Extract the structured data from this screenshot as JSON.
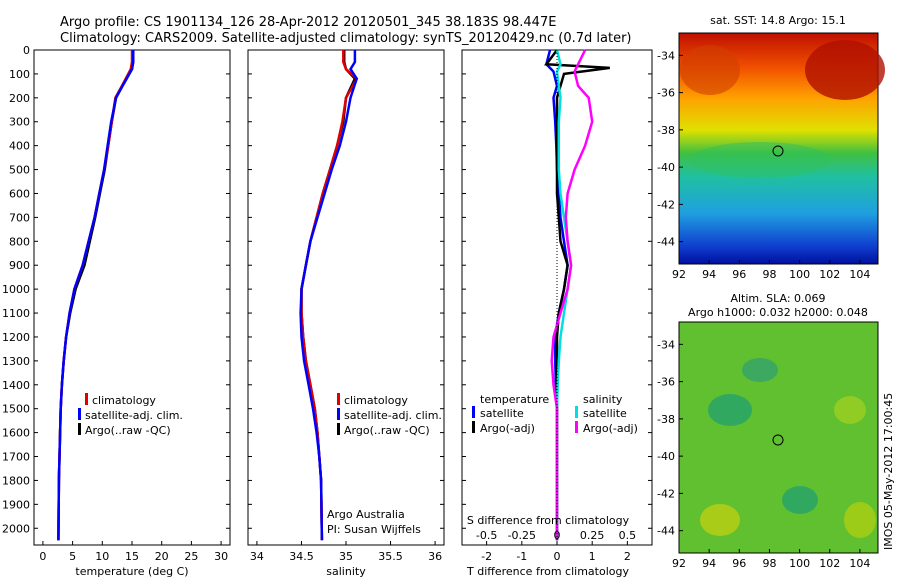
{
  "title_line1": "Argo profile: CS 1901134_126 28-Apr-2012 20120501_345 38.183S 98.447E",
  "title_line2": "Climatology: CARS2009. Satellite-adjusted climatology: synTS_20120429.nc (0.7d later)",
  "y_axis": {
    "ticks": [
      0,
      100,
      200,
      300,
      400,
      500,
      600,
      700,
      800,
      900,
      1000,
      1100,
      1200,
      1300,
      1400,
      1500,
      1600,
      1700,
      1800,
      1900,
      2000
    ],
    "lim": [
      0,
      2070
    ],
    "reversed": true
  },
  "panels": {
    "temperature": {
      "xlabel": "temperature (deg C)",
      "xticks": [
        0,
        5,
        10,
        15,
        20,
        25,
        30
      ],
      "xlim": [
        -1.5,
        31.5
      ],
      "legend": [
        "climatology",
        "satellite-adj. clim.",
        "Argo(..raw -QC)"
      ]
    },
    "salinity": {
      "xlabel": "salinity",
      "xticks": [
        34,
        34.5,
        35,
        35.5,
        36
      ],
      "xlim": [
        33.9,
        36.1
      ],
      "legend": [
        "climatology",
        "satellite-adj. clim.",
        "Argo(..raw -QC)"
      ],
      "credit1": "Argo Australia",
      "credit2": "PI: Susan Wijffels"
    },
    "difference": {
      "xlabel": "T difference from climatology",
      "xticks_bottom": [
        "-2",
        "-1",
        "0",
        "1",
        "2"
      ],
      "xticks_s_label": "S difference from climatology",
      "xticks_top": [
        "-0.5",
        "-0.25",
        "0",
        "0.25",
        "0.5"
      ],
      "xlim": [
        -2.7,
        2.7
      ],
      "legend_t_head": "temperature",
      "legend_s_head": "salinity",
      "legend_t": [
        "satellite",
        "Argo(-adj)"
      ],
      "legend_s": [
        "satellite",
        "Argo(-adj)"
      ]
    }
  },
  "maps": {
    "sst": {
      "title": "sat. SST: 14.8 Argo: 15.1",
      "yticks": [
        "-34",
        "-36",
        "-38",
        "-40",
        "-42",
        "-44"
      ],
      "xticks": [
        "92",
        "94",
        "96",
        "98",
        "100",
        "102",
        "104"
      ]
    },
    "sla": {
      "title1": "Altim. SLA: 0.069",
      "title2": "Argo h1000: 0.032 h2000: 0.048",
      "yticks": [
        "-34",
        "-36",
        "-38",
        "-40",
        "-42",
        "-44"
      ],
      "xticks": [
        "92",
        "94",
        "96",
        "98",
        "100",
        "102",
        "104"
      ]
    }
  },
  "footer_stamp": "IMOS 05-May-2012 17:00:45",
  "colors": {
    "climatology": "#e00000",
    "satellite": "#0000ff",
    "argo": "#000000",
    "sal_satellite": "#00e0e0",
    "sal_argo": "#ff00ff"
  },
  "chart_data": [
    {
      "type": "line",
      "title": "",
      "xlabel": "temperature (deg C)",
      "ylabel": "",
      "xlim": [
        -1.5,
        31.5
      ],
      "ylim": [
        2070,
        0
      ],
      "series": [
        {
          "name": "climatology",
          "x": [
            15.2,
            15.2,
            15.0,
            13.4,
            12.3,
            11.6,
            11.0,
            10.4,
            9.6,
            8.8,
            7.9,
            7.0,
            5.5,
            4.6,
            3.9,
            3.5,
            3.2,
            3.0,
            2.9,
            2.8,
            2.7,
            2.6
          ],
          "y": [
            0,
            50,
            80,
            150,
            200,
            300,
            400,
            500,
            600,
            700,
            800,
            900,
            1000,
            1100,
            1200,
            1300,
            1400,
            1500,
            1600,
            1700,
            1800,
            2050
          ]
        },
        {
          "name": "satellite-adj. clim.",
          "x": [
            15.0,
            15.0,
            14.8,
            13.3,
            12.2,
            11.6,
            11.0,
            10.3,
            9.5,
            8.7,
            7.7,
            6.7,
            5.3,
            4.5,
            3.9,
            3.5,
            3.2,
            3.0,
            2.9,
            2.8,
            2.7,
            2.6
          ],
          "y": [
            0,
            50,
            80,
            150,
            200,
            300,
            400,
            500,
            600,
            700,
            800,
            900,
            1000,
            1100,
            1200,
            1300,
            1400,
            1500,
            1600,
            1700,
            1800,
            2050
          ]
        },
        {
          "name": "Argo(..raw -QC)",
          "x": [
            15.2,
            15.2,
            15.0,
            13.4,
            12.3,
            11.5,
            10.9,
            10.3,
            9.5,
            8.7,
            7.7,
            6.7,
            5.3,
            4.5,
            3.9,
            3.5,
            3.2,
            3.0,
            2.9,
            2.8,
            2.7,
            2.6
          ],
          "y": [
            0,
            50,
            80,
            150,
            200,
            300,
            400,
            500,
            600,
            700,
            800,
            900,
            1000,
            1100,
            1200,
            1300,
            1400,
            1500,
            1600,
            1700,
            1800,
            2050
          ]
        }
      ]
    },
    {
      "type": "line",
      "title": "",
      "xlabel": "salinity",
      "ylabel": "",
      "xlim": [
        33.9,
        36.1
      ],
      "ylim": [
        2070,
        0
      ],
      "series": [
        {
          "name": "climatology",
          "x": [
            34.98,
            34.98,
            35.0,
            35.1,
            35.0,
            34.97,
            34.9,
            34.82,
            34.74,
            34.67,
            34.6,
            34.55,
            34.5,
            34.5,
            34.52,
            34.55,
            34.6,
            34.65,
            34.68,
            34.7,
            34.72,
            34.73
          ],
          "y": [
            0,
            50,
            80,
            120,
            200,
            300,
            400,
            500,
            600,
            700,
            800,
            900,
            1000,
            1100,
            1200,
            1300,
            1400,
            1500,
            1600,
            1700,
            1800,
            2050
          ]
        },
        {
          "name": "satellite-adj. clim.",
          "x": [
            34.97,
            34.97,
            35.0,
            35.12,
            35.0,
            34.96,
            34.9,
            34.82,
            34.74,
            34.67,
            34.6,
            34.55,
            34.5,
            34.5,
            34.52,
            34.55,
            34.6,
            34.65,
            34.68,
            34.7,
            34.72,
            34.73
          ],
          "y": [
            0,
            50,
            80,
            120,
            200,
            300,
            400,
            500,
            600,
            700,
            800,
            900,
            1000,
            1100,
            1200,
            1300,
            1400,
            1500,
            1600,
            1700,
            1800,
            2050
          ]
        },
        {
          "name": "Argo(..raw -QC)",
          "x": [
            35.1,
            35.1,
            35.05,
            35.12,
            35.05,
            35.0,
            34.93,
            34.84,
            34.76,
            34.68,
            34.6,
            34.55,
            34.5,
            34.49,
            34.5,
            34.53,
            34.58,
            34.63,
            34.67,
            34.7,
            34.72,
            34.73
          ],
          "y": [
            0,
            50,
            80,
            120,
            200,
            300,
            400,
            500,
            600,
            700,
            800,
            900,
            1000,
            1100,
            1200,
            1300,
            1400,
            1500,
            1600,
            1700,
            1800,
            2050
          ]
        }
      ]
    },
    {
      "type": "line",
      "title": "",
      "xlabel": "T difference from climatology",
      "ylabel": "",
      "xlim": [
        -2.7,
        2.7
      ],
      "ylim": [
        2070,
        0
      ],
      "series": [
        {
          "name": "temperature satellite",
          "x": [
            -0.2,
            -0.3,
            -0.1,
            0.0,
            -0.1,
            -0.05,
            -0.02,
            0.0,
            0.05,
            0.1,
            0.2,
            0.3,
            0.2,
            0.05,
            -0.05,
            -0.05,
            -0.03,
            0.0,
            0.0,
            0.0,
            0.0
          ],
          "y": [
            0,
            60,
            90,
            150,
            200,
            300,
            400,
            500,
            600,
            700,
            800,
            900,
            1000,
            1100,
            1200,
            1300,
            1400,
            1500,
            1600,
            1800,
            2050
          ]
        },
        {
          "name": "temperature Argo(-adj)",
          "x": [
            0.0,
            -0.3,
            1.5,
            0.2,
            0.0,
            0.0,
            0.0,
            0.0,
            0.0,
            0.05,
            0.1,
            0.3,
            0.2,
            0.05,
            0.0,
            0.0,
            0.0,
            0.0,
            0.0,
            0.0,
            0.0
          ],
          "y": [
            0,
            60,
            75,
            100,
            200,
            300,
            400,
            500,
            600,
            700,
            800,
            900,
            1000,
            1100,
            1200,
            1300,
            1400,
            1500,
            1600,
            1800,
            2050
          ]
        },
        {
          "name": "salinity satellite",
          "x": [
            0.0,
            0.1,
            0.0,
            0.05,
            0.1,
            0.05,
            0.05,
            0.05,
            0.1,
            0.2,
            0.3,
            0.4,
            0.3,
            0.2,
            0.1,
            0.05,
            0.02,
            0.0,
            0.0,
            0.0,
            0.0
          ],
          "y": [
            0,
            60,
            90,
            150,
            200,
            300,
            400,
            500,
            600,
            700,
            800,
            900,
            1000,
            1100,
            1200,
            1300,
            1400,
            1500,
            1600,
            1800,
            2050
          ]
        },
        {
          "name": "salinity Argo(-adj)",
          "x": [
            0.8,
            0.6,
            0.5,
            0.6,
            0.9,
            1.0,
            0.8,
            0.5,
            0.3,
            0.25,
            0.3,
            0.4,
            0.3,
            0.1,
            -0.1,
            -0.15,
            -0.1,
            0.0,
            0.0,
            0.0,
            0.0
          ],
          "y": [
            0,
            60,
            90,
            150,
            200,
            300,
            400,
            500,
            600,
            700,
            800,
            900,
            1000,
            1100,
            1200,
            1300,
            1400,
            1500,
            1600,
            1800,
            2050
          ]
        }
      ]
    }
  ]
}
